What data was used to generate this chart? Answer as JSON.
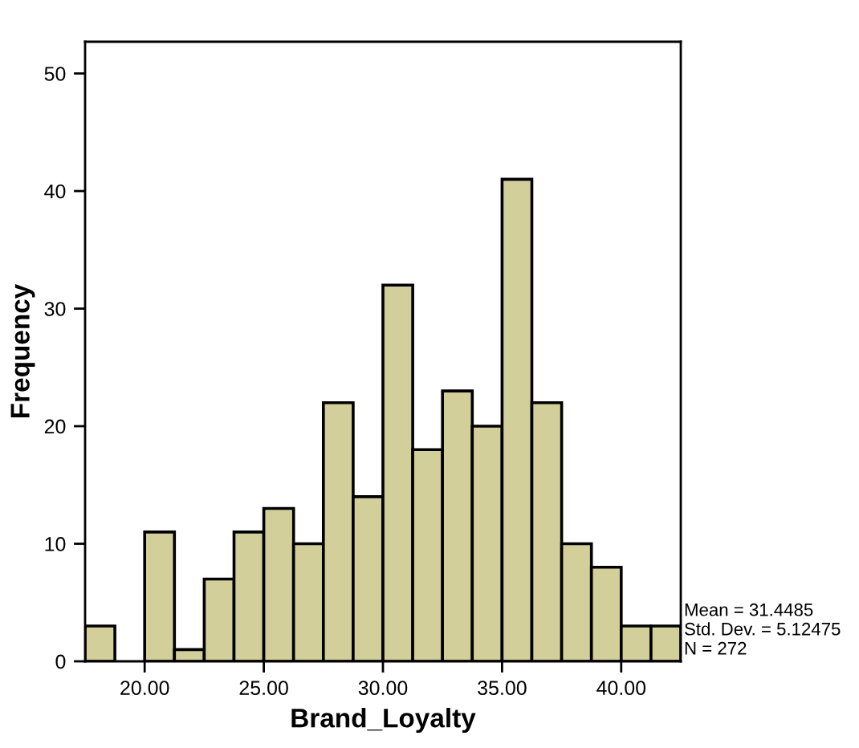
{
  "chart_data": {
    "type": "histogram",
    "xlabel": "Brand_Loyalty",
    "ylabel": "Frequency",
    "bins": [
      17.5,
      18.75,
      20.0,
      21.25,
      22.5,
      23.75,
      25.0,
      26.25,
      27.5,
      28.75,
      30.0,
      31.25,
      32.5,
      33.75,
      35.0,
      36.25,
      37.5,
      38.75,
      40.0,
      41.25,
      42.5
    ],
    "values": [
      3,
      0,
      11,
      1,
      7,
      11,
      13,
      10,
      22,
      14,
      32,
      18,
      23,
      20,
      41,
      22,
      10,
      8,
      3,
      3
    ],
    "color": "#d3cf9a",
    "xlim": [
      17.5,
      42.5
    ],
    "xticks": [
      {
        "value": 20,
        "label": "20.00"
      },
      {
        "value": 25,
        "label": "25.00"
      },
      {
        "value": 30,
        "label": "30.00"
      },
      {
        "value": 35,
        "label": "35.00"
      },
      {
        "value": 40,
        "label": "40.00"
      }
    ],
    "ylim": [
      0,
      52.7
    ],
    "yticks": [
      0,
      10,
      20,
      30,
      40,
      50
    ],
    "grid": false,
    "annotations": [
      "Mean = 31.4485",
      "Std. Dev. = 5.12475",
      "N = 272"
    ]
  }
}
